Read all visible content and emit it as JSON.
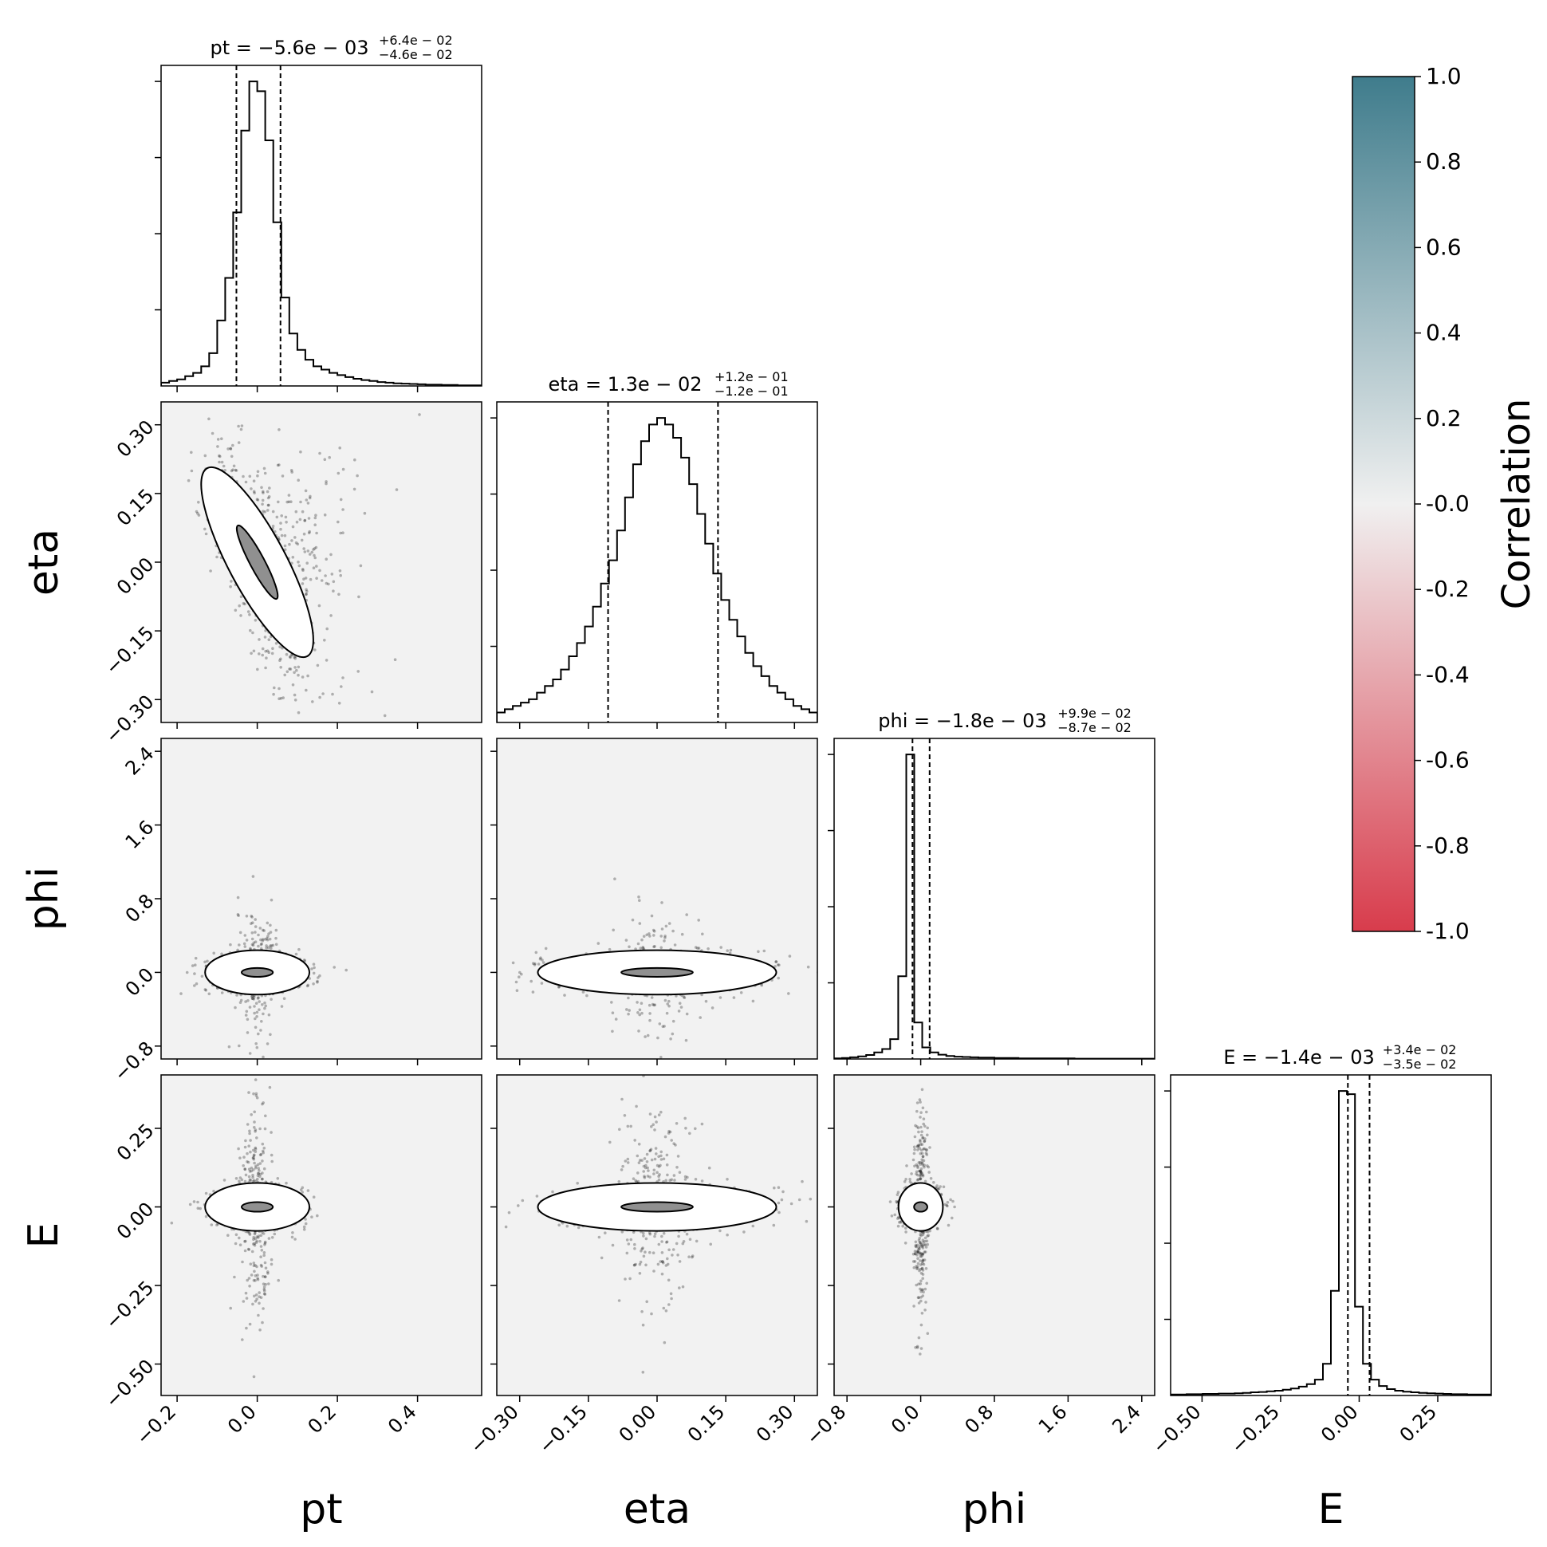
{
  "chart_data": {
    "type": "corner",
    "parameters": [
      "pt",
      "eta",
      "phi",
      "E"
    ],
    "axis_labels": [
      "pt",
      "eta",
      "phi",
      "E"
    ],
    "ranges": {
      "pt": [
        -0.24,
        0.56
      ],
      "eta": [
        -0.35,
        0.35
      ],
      "phi": [
        -0.94,
        2.54
      ],
      "E": [
        -0.6,
        0.42
      ]
    },
    "ticks": {
      "pt": [
        -0.2,
        0.0,
        0.2,
        0.4
      ],
      "eta": [
        -0.3,
        -0.15,
        0.0,
        0.15,
        0.3
      ],
      "phi": [
        -0.8,
        0.0,
        0.8,
        1.6,
        2.4
      ],
      "E": [
        -0.5,
        -0.25,
        0.0,
        0.25
      ]
    },
    "tick_labels": {
      "pt": [
        "−0.2",
        "0.0",
        "0.2",
        "0.4"
      ],
      "eta": [
        "−0.30",
        "−0.15",
        "0.00",
        "0.15",
        "0.30"
      ],
      "phi": [
        "−0.8",
        "0.0",
        "0.8",
        "1.6",
        "2.4"
      ],
      "E": [
        "−0.50",
        "−0.25",
        "0.00",
        "0.25"
      ]
    },
    "titles": [
      {
        "param": "pt",
        "main": "pt = −5.6e − 03",
        "sup": "+6.4e − 02",
        "sub": "−4.6e − 02"
      },
      {
        "param": "eta",
        "main": "eta = 1.3e − 02",
        "sup": "+1.2e − 01",
        "sub": "−1.2e − 01"
      },
      {
        "param": "phi",
        "main": "phi = −1.8e − 03",
        "sup": "+9.9e − 02",
        "sub": "−8.7e − 02"
      },
      {
        "param": "E",
        "main": "E = −1.4e − 03",
        "sup": "+3.4e − 02",
        "sub": "−3.5e − 02"
      }
    ],
    "quantiles": {
      "pt": [
        -0.052,
        0.058
      ],
      "eta": [
        -0.107,
        0.133
      ],
      "phi": [
        -0.089,
        0.097
      ],
      "E": [
        -0.036,
        0.033
      ]
    },
    "histograms": {
      "pt": {
        "range": [
          -0.24,
          0.56
        ],
        "values": [
          0.01,
          0.015,
          0.02,
          0.03,
          0.04,
          0.06,
          0.1,
          0.2,
          0.33,
          0.53,
          0.78,
          0.93,
          0.9,
          0.75,
          0.5,
          0.27,
          0.16,
          0.11,
          0.08,
          0.06,
          0.05,
          0.04,
          0.033,
          0.027,
          0.022,
          0.018,
          0.015,
          0.012,
          0.01,
          0.008,
          0.007,
          0.006,
          0.005,
          0.004,
          0.004,
          0.003,
          0.003,
          0.002,
          0.002,
          0.002
        ]
      },
      "eta": {
        "range": [
          -0.35,
          0.35
        ],
        "values": [
          0.03,
          0.04,
          0.05,
          0.06,
          0.07,
          0.09,
          0.11,
          0.13,
          0.16,
          0.2,
          0.24,
          0.29,
          0.35,
          0.42,
          0.49,
          0.58,
          0.68,
          0.78,
          0.85,
          0.9,
          0.92,
          0.9,
          0.86,
          0.8,
          0.72,
          0.63,
          0.54,
          0.45,
          0.37,
          0.31,
          0.26,
          0.21,
          0.17,
          0.14,
          0.11,
          0.09,
          0.07,
          0.05,
          0.04,
          0.03
        ]
      },
      "phi": {
        "range": [
          -0.94,
          2.54
        ],
        "values": [
          0.002,
          0.003,
          0.005,
          0.008,
          0.012,
          0.02,
          0.03,
          0.06,
          0.25,
          0.92,
          0.11,
          0.035,
          0.02,
          0.013,
          0.009,
          0.007,
          0.006,
          0.005,
          0.004,
          0.004,
          0.003,
          0.003,
          0.003,
          0.002,
          0.002,
          0.002,
          0.002,
          0.002,
          0.002,
          0.002,
          0.001,
          0.001,
          0.001,
          0.001,
          0.001,
          0.001,
          0.001,
          0.001,
          0.001,
          0.001
        ]
      },
      "E": {
        "range": [
          -0.6,
          0.42
        ],
        "values": [
          0.003,
          0.003,
          0.004,
          0.004,
          0.005,
          0.005,
          0.006,
          0.006,
          0.007,
          0.008,
          0.01,
          0.011,
          0.013,
          0.015,
          0.018,
          0.022,
          0.028,
          0.036,
          0.05,
          0.1,
          0.33,
          0.96,
          0.95,
          0.28,
          0.1,
          0.05,
          0.03,
          0.02,
          0.015,
          0.012,
          0.01,
          0.008,
          0.007,
          0.006,
          0.005,
          0.004,
          0.004,
          0.003,
          0.003,
          0.003
        ]
      }
    },
    "pair_samples": {
      "eta_vs_pt": {
        "cov": [
          [
            0.0035,
            -0.0048
          ],
          [
            -0.0048,
            0.0138
          ]
        ],
        "tail": "pt_positive"
      },
      "phi_vs_pt": {
        "cov": [
          [
            0.0035,
            0.0
          ],
          [
            0.0,
            0.012
          ]
        ],
        "tail": "phi_cross"
      },
      "phi_vs_eta": {
        "cov": [
          [
            0.014,
            0.0
          ],
          [
            0.0,
            0.012
          ]
        ],
        "tail": "phi_cross"
      },
      "E_vs_pt": {
        "cov": [
          [
            0.0035,
            0.0
          ],
          [
            0.0,
            0.0012
          ]
        ],
        "tail": "E_cross"
      },
      "E_vs_eta": {
        "cov": [
          [
            0.014,
            0.0
          ],
          [
            0.0,
            0.0012
          ]
        ],
        "tail": "E_cross"
      },
      "E_vs_phi": {
        "cov": [
          [
            0.012,
            0.0
          ],
          [
            0.0,
            0.0012
          ]
        ],
        "tail": "E_cross"
      }
    },
    "colorbar": {
      "label": "Correlation",
      "range": [
        -1.0,
        1.0
      ],
      "ticks": [
        1.0,
        0.8,
        0.6,
        0.4,
        0.2,
        -0.0,
        -0.2,
        -0.4,
        -0.6,
        -0.8,
        -1.0
      ],
      "tick_labels": [
        "1.0",
        "0.8",
        "0.6",
        "0.4",
        "0.2",
        "-0.0",
        "-0.2",
        "-0.4",
        "-0.6",
        "-0.8",
        "-1.0"
      ],
      "colors": {
        "top": "#3f7c8c",
        "middle": "#f0f0f0",
        "bottom": "#d83c4c"
      }
    },
    "colors": {
      "contour": "#000000",
      "points": "#000000",
      "panel_background": "#f2f2f2"
    }
  }
}
